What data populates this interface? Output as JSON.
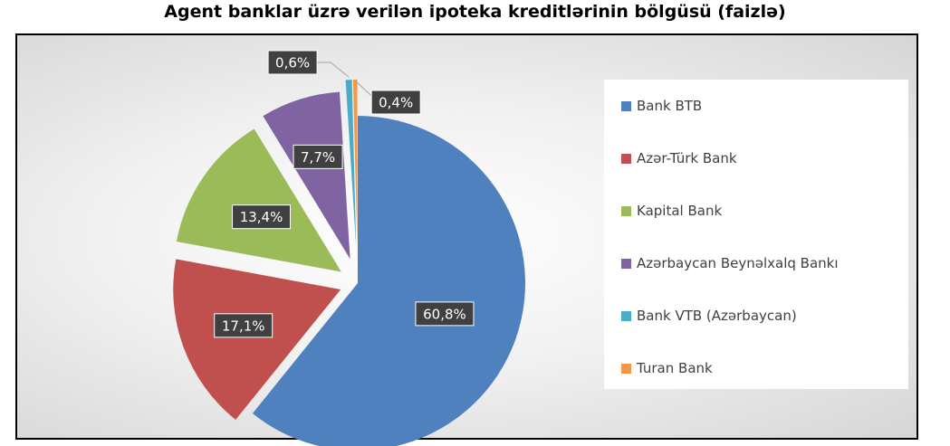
{
  "chart_data": {
    "type": "pie",
    "title": "Agent banklar üzrə verilən ipoteka kreditlərinin bölgüsü (faizlə)",
    "legend_position": "right",
    "slices": [
      {
        "name": "Bank BTB",
        "value": 60.8,
        "label": "60,8%",
        "color": "#4e81bd"
      },
      {
        "name": "Azər-Türk Bank",
        "value": 17.1,
        "label": "17,1%",
        "color": "#c0504d"
      },
      {
        "name": "Kapital Bank",
        "value": 13.4,
        "label": "13,4%",
        "color": "#9bbb59"
      },
      {
        "name": "Azərbaycan Beynəlxalq Bankı",
        "value": 7.7,
        "label": "7,7%",
        "color": "#8064a2"
      },
      {
        "name": "Bank VTB (Azərbaycan)",
        "value": 0.6,
        "label": "0,6%",
        "color": "#4bacc6"
      },
      {
        "name": "Turan Bank",
        "value": 0.4,
        "label": "0,4%",
        "color": "#f79646"
      }
    ]
  }
}
